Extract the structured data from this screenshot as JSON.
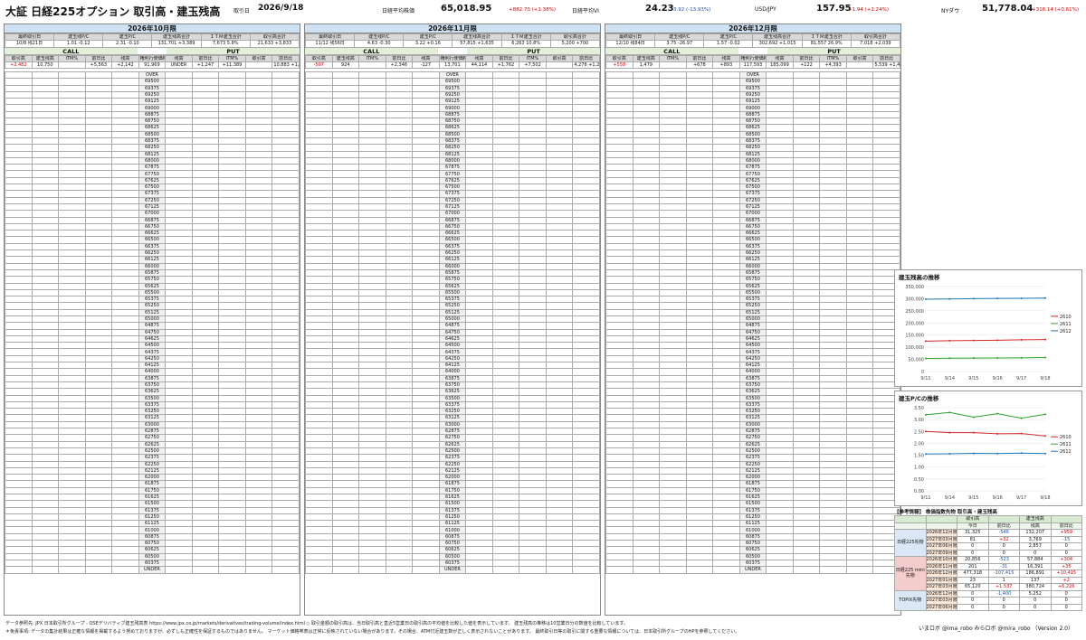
{
  "header": {
    "title": "大証 日経225オプション 取引高・建玉残高",
    "date_label": "取引日",
    "date": "2026/9/18",
    "n225_label": "日経平均株価",
    "n225": "65,018.95",
    "n225_chg": "+882.70 (+1.38%)",
    "vi_label": "日経平均VI",
    "vi": "24.23",
    "vi_chg": "-3.92 (-13.93%)",
    "usd_label": "USD/JPY",
    "usd": "157.95",
    "usd_chg": "+1.94 (+1.24%)",
    "ny_label": "NYダウ",
    "ny": "51,778.04",
    "ny_chg": "+316.14 (+0.61%)"
  },
  "panels": [
    {
      "title": "2026年10月限",
      "info_h": [
        "最終取引日",
        "建玉残P/C",
        "建玉P/C",
        "建玉残高合計",
        "ＩＴＭ建玉合計",
        "取引高合計"
      ],
      "info_v": [
        "10/8 残21日",
        "1.01 -0.12",
        "2.31 -0.10",
        "131,701 +3,389",
        "7,673 5.8%",
        "21,633 +3,833"
      ],
      "call": "CALL",
      "mid": "",
      "put": "PUT",
      "cols": [
        "取引高",
        "建玉残高",
        "ITM%",
        "前日比",
        "残高",
        "権利行使価格",
        "残高",
        "前日比",
        "ITM%",
        "取引高",
        "前日比"
      ],
      "sum": [
        "+2,482",
        "10,750",
        "",
        "+5,563",
        "+2,142",
        "91,969",
        "UNDER",
        "+1,247",
        "+11,389",
        "",
        "10,883 +1,329"
      ]
    },
    {
      "title": "2026年11月限",
      "info_h": [
        "最終取引日",
        "建玉残P/C",
        "建玉P/C",
        "建玉残高合計",
        "ＩＴＭ建玉合計",
        "取引高合計"
      ],
      "info_v": [
        "11/12 残56日",
        "4.63 -0.30",
        "3.22 +0.16",
        "57,815 +1,635",
        "6,263 10.8%",
        "5,200 +700"
      ],
      "call": "CALL",
      "mid": "",
      "put": "PUT",
      "cols": [
        "取引高",
        "建玉残高",
        "ITM%",
        "前日比",
        "残高",
        "権利行使価格",
        "残高",
        "前日比",
        "ITM%",
        "取引高",
        "前日比"
      ],
      "sum": [
        "-507",
        "924",
        "",
        "+2,346",
        "-127",
        "13,701",
        "44,114",
        "+1,762",
        "+7,502",
        "",
        "4,276 +1,207"
      ]
    },
    {
      "title": "2026年12月限",
      "info_h": [
        "最終取引日",
        "建玉残P/C",
        "建玉P/C",
        "建玉残高合計",
        "ＩＴＭ建玉合計",
        "取引高合計"
      ],
      "info_v": [
        "12/10 残84日",
        "3.75 -26.97",
        "1.57 -0.02",
        "302,692 +1,015",
        "81,557 26.9%",
        "7,018 +2,039"
      ],
      "call": "CALL",
      "mid": "",
      "put": "PUT",
      "cols": [
        "取引高",
        "建玉残高",
        "ITM%",
        "前日比",
        "残高",
        "権利行使価格",
        "残高",
        "前日比",
        "ITM%",
        "取引高",
        "前日比"
      ],
      "sum": [
        "+558",
        "1,479",
        "",
        "+678",
        "+893",
        "117,593",
        "185,099",
        "+122",
        "+4,393",
        "",
        "5,539 +1,481"
      ]
    }
  ],
  "strikes": [
    "OVER",
    "69500",
    "69375",
    "69250",
    "69125",
    "69000",
    "68875",
    "68750",
    "68625",
    "68500",
    "68375",
    "68250",
    "68125",
    "68000",
    "67875",
    "67750",
    "67625",
    "67500",
    "67375",
    "67250",
    "67125",
    "67000",
    "66875",
    "66750",
    "66625",
    "66500",
    "66375",
    "66250",
    "66125",
    "66000",
    "65875",
    "65750",
    "65625",
    "65500",
    "65375",
    "65250",
    "65125",
    "65000",
    "64875",
    "64750",
    "64625",
    "64500",
    "64375",
    "64250",
    "64125",
    "64000",
    "63875",
    "63750",
    "63625",
    "63500",
    "63375",
    "63250",
    "63125",
    "63000",
    "62875",
    "62750",
    "62625",
    "62500",
    "62375",
    "62250",
    "62125",
    "62000",
    "61875",
    "61750",
    "61625",
    "61500",
    "61375",
    "61250",
    "61125",
    "61000",
    "60875",
    "60750",
    "60625",
    "60500",
    "60375",
    "UNDER"
  ],
  "chart1": {
    "title": "建玉残高の推移",
    "x": [
      "9/11",
      "9/14",
      "9/15",
      "9/16",
      "9/17",
      "9/18"
    ],
    "yticks": [
      "350,000",
      "300,000",
      "250,000",
      "200,000",
      "150,000",
      "100,000",
      "50,000",
      "0"
    ],
    "ylim": [
      0,
      350000
    ],
    "series": [
      {
        "name": "2610",
        "color": "#d62728",
        "values": [
          125000,
          127000,
          128000,
          129000,
          131000,
          131701
        ]
      },
      {
        "name": "2611",
        "color": "#2ca02c",
        "values": [
          54000,
          55000,
          55500,
          56000,
          56200,
          57815
        ]
      },
      {
        "name": "2612",
        "color": "#1f77b4",
        "values": [
          298000,
          299000,
          300000,
          301000,
          301700,
          302692
        ]
      }
    ]
  },
  "chart2": {
    "title": "建玉P/Cの推移",
    "x": [
      "9/11",
      "9/14",
      "9/15",
      "9/16",
      "9/17",
      "9/18"
    ],
    "yticks": [
      "3.50",
      "3.00",
      "2.50",
      "2.00",
      "1.50",
      "1.00",
      "0.50",
      "0.00"
    ],
    "ylim": [
      0,
      3.5
    ],
    "series": [
      {
        "name": "2610",
        "color": "#d62728",
        "values": [
          2.5,
          2.45,
          2.45,
          2.4,
          2.41,
          2.31
        ]
      },
      {
        "name": "2611",
        "color": "#2ca02c",
        "values": [
          3.2,
          3.3,
          3.1,
          3.25,
          3.06,
          3.22
        ]
      },
      {
        "name": "2612",
        "color": "#1f77b4",
        "values": [
          1.55,
          1.56,
          1.58,
          1.57,
          1.59,
          1.57
        ]
      }
    ]
  },
  "futures": {
    "title": "【参考情報】 株価指数先物 取引高・建玉残高",
    "head1": [
      "",
      "",
      "取引高",
      "",
      "建玉残高",
      ""
    ],
    "head2": [
      "",
      "",
      "今日",
      "前日比",
      "残高",
      "前日比"
    ],
    "groups": [
      {
        "name": "日経225先物",
        "rows": [
          [
            "2026年12月限",
            "31,325",
            "-546",
            "132,207",
            "+959"
          ],
          [
            "2027年03月限",
            "81",
            "+32",
            "3,769",
            "-15"
          ],
          [
            "2027年06月限",
            "0",
            "0",
            "2,857",
            "0"
          ],
          [
            "2027年09月限",
            "0",
            "0",
            "0",
            "0"
          ]
        ]
      },
      {
        "name": "日経225 mini先物",
        "rows": [
          [
            "2026年10月限",
            "20,856",
            "-523",
            "57,884",
            "+304"
          ],
          [
            "2026年11月限",
            "201",
            "-31",
            "16,391",
            "+35"
          ],
          [
            "2026年12月限",
            "477,318",
            "-107,415",
            "186,891",
            "+10,415"
          ],
          [
            "2027年01月限",
            "23",
            "1",
            "137",
            "+2"
          ],
          [
            "2027年03月限",
            "65,120",
            "+1,537",
            "380,724",
            "+6,226"
          ]
        ]
      },
      {
        "name": "TOPIX先物",
        "rows": [
          [
            "2026年12月限",
            "0",
            "-1,400",
            "5,252",
            "0"
          ],
          [
            "2027年03月限",
            "0",
            "0",
            "0",
            "0"
          ],
          [
            "2027年06月限",
            "0",
            "0",
            "0",
            "0"
          ]
        ]
      }
    ]
  },
  "footer": {
    "line1": "データ参照先: JPX 日本取引所グループ - OSEデリバティブ建玉残高表 https://www.jpx.co.jp/markets/derivatives/trading-volume/index.html   ◇ 取引金額の取引高は、当日取引高と直近5営業日の取引高の平均値を比較した値を表示しています。 建玉残高の推移は10営業日分の数値を比較しています。",
    "line2": "＊免責事項: データの集計結果は正確な情報を掲載するよう努めておりますが、必ずしも正確性を保証するものではありません。 マーケット価格帯表は正常に反映されていない場合があります。その場合、ATM付近建玉数が正しく表示されないことがあります。 最終取引日等の取引に関する重要な情報については、日本取引所グループのHPを参照してください。",
    "credit": "いまロボ @ima_robo  みらロボ @mira_robo （Version 2.0）"
  }
}
